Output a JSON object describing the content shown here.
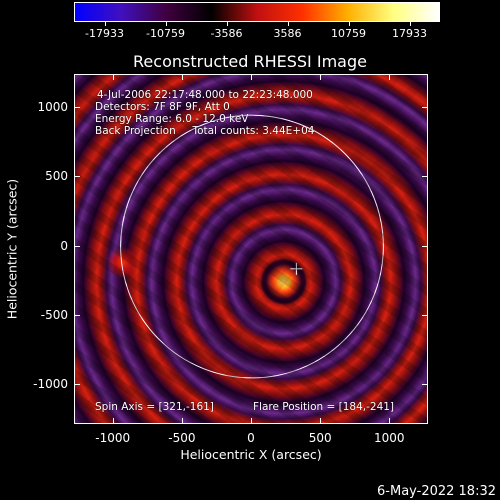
{
  "colorbar": {
    "tick_labels": [
      "-17933",
      "-10759",
      "-3586",
      "3586",
      "10759",
      "17933"
    ],
    "colors": [
      "#0000ff",
      "#4010c0",
      "#400040",
      "#000000",
      "#c01010",
      "#ff3000",
      "#ffb000",
      "#ffff80",
      "#ffffff"
    ]
  },
  "image": {
    "title": "Reconstructed RHESSI Image",
    "info_lines": [
      "4-Jul-2006 22:17:48.000 to 22:23:48.000",
      "Detectors: 7F 8F 9F, Att 0",
      "Energy Range: 6.0 - 12.0 keV",
      "Back Projection     Total counts: 3.44E+04"
    ],
    "spin_axis": "Spin Axis = [321,-161]",
    "flare_position": "Flare Position = [184,-241]",
    "flare_xy": [
      184,
      -241
    ],
    "marker_xy": [
      321,
      -161
    ],
    "solar_disk_radius_arcsec": 950
  },
  "axes": {
    "xlabel": "Heliocentric X (arcsec)",
    "ylabel": "Heliocentric Y (arcsec)",
    "xlim": [
      -1280,
      1280
    ],
    "ylim": [
      -1290,
      1240
    ],
    "xticks": [
      -1000,
      -500,
      0,
      500,
      1000
    ],
    "yticks": [
      1000,
      500,
      0,
      -500,
      -1000
    ],
    "xtick_labels": [
      "-1000",
      "-500",
      "0",
      "500",
      "1000"
    ],
    "ytick_labels": [
      "1000",
      "500",
      "0",
      "-500",
      "-1000"
    ]
  },
  "timestamp": "6-May-2022 18:32"
}
